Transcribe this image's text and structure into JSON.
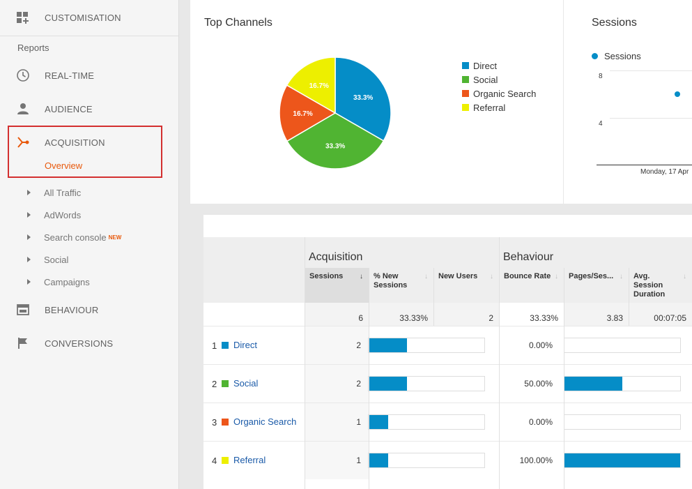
{
  "sidebar": {
    "customisation": "CUSTOMISATION",
    "reports": "Reports",
    "realtime": "REAL-TIME",
    "audience": "AUDIENCE",
    "acquisition": "ACQUISITION",
    "overview": "Overview",
    "sub": {
      "all_traffic": "All Traffic",
      "adwords": "AdWords",
      "search_console": "Search console",
      "new_badge": "NEW",
      "social": "Social",
      "campaigns": "Campaigns"
    },
    "behaviour": "BEHAVIOUR",
    "conversions": "CONVERSIONS",
    "accent_color": "#e8590c"
  },
  "top_channels": {
    "title": "Top Channels",
    "legend": [
      "Direct",
      "Social",
      "Organic Search",
      "Referral"
    ]
  },
  "chart_data": {
    "type": "pie",
    "title": "Top Channels",
    "categories": [
      "Direct",
      "Social",
      "Organic Search",
      "Referral"
    ],
    "values": [
      33.3,
      33.3,
      16.7,
      16.7
    ],
    "labels": [
      "33.3%",
      "33.3%",
      "16.7%",
      "16.7%"
    ],
    "colors": [
      "#058dc7",
      "#50b432",
      "#ed561b",
      "#edef00"
    ],
    "legend_position": "right"
  },
  "sessions_card": {
    "title": "Sessions",
    "legend": "Sessions",
    "y_ticks": [
      "8",
      "4"
    ],
    "x_label": "Monday, 17 Apr"
  },
  "table": {
    "groups": {
      "acquisition": "Acquisition",
      "behaviour": "Behaviour"
    },
    "headers": {
      "sessions": "Sessions",
      "pct_new": "% New Sessions",
      "new_users": "New Users",
      "bounce": "Bounce Rate",
      "pages": "Pages/Ses...",
      "duration": "Avg. Session Duration"
    },
    "totals": {
      "sessions": "6",
      "pct_new": "33.33%",
      "new_users": "2",
      "bounce": "33.33%",
      "pages": "3.83",
      "duration": "00:07:05"
    },
    "rows": [
      {
        "rank": "1",
        "name": "Direct",
        "color": "#058dc7",
        "sessions": "2",
        "bounce": "0.00%",
        "sessions_frac": 0.333,
        "bounce_frac": 0.0
      },
      {
        "rank": "2",
        "name": "Social",
        "color": "#50b432",
        "sessions": "2",
        "bounce": "50.00%",
        "sessions_frac": 0.333,
        "bounce_frac": 0.5
      },
      {
        "rank": "3",
        "name": "Organic Search",
        "color": "#ed561b",
        "sessions": "1",
        "bounce": "0.00%",
        "sessions_frac": 0.167,
        "bounce_frac": 0.0
      },
      {
        "rank": "4",
        "name": "Referral",
        "color": "#edef00",
        "sessions": "1",
        "bounce": "100.00%",
        "sessions_frac": 0.167,
        "bounce_frac": 1.0
      }
    ]
  }
}
